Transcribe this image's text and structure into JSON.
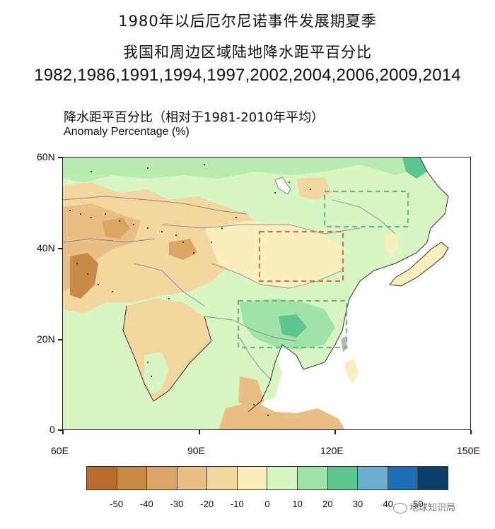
{
  "title": {
    "line1": "1980年以后厄尔尼诺事件发展期夏季",
    "line2": "我国和周边区域陆地降水距平百分比",
    "years": "1982,1986,1991,1994,1997,2002,2004,2006,2009,2014"
  },
  "subtitle": {
    "chinese": "降水距平百分比（相对于1981-2010年平均）",
    "english": "Anomaly Percentage (%)"
  },
  "axes": {
    "y_ticks": [
      "60N",
      "40N",
      "20N",
      "0"
    ],
    "x_ticks": [
      "60E",
      "90E",
      "120E",
      "150E"
    ]
  },
  "colorbar": {
    "labels": [
      "-50",
      "-40",
      "-30",
      "-20",
      "-10",
      "0",
      "10",
      "20",
      "30",
      "40",
      "50"
    ],
    "colors": [
      "#b86b2c",
      "#c98a47",
      "#dba566",
      "#eabf85",
      "#f3d79f",
      "#fbefbd",
      "#d8f5c4",
      "#9fe4a6",
      "#5cc590",
      "#6aaed1",
      "#1c6fb4",
      "#0b3d6a"
    ]
  },
  "watermark": "地球知识局",
  "legend_colors": {
    "dry_box": "#d0744f",
    "wet_box": "#6cb88a"
  }
}
